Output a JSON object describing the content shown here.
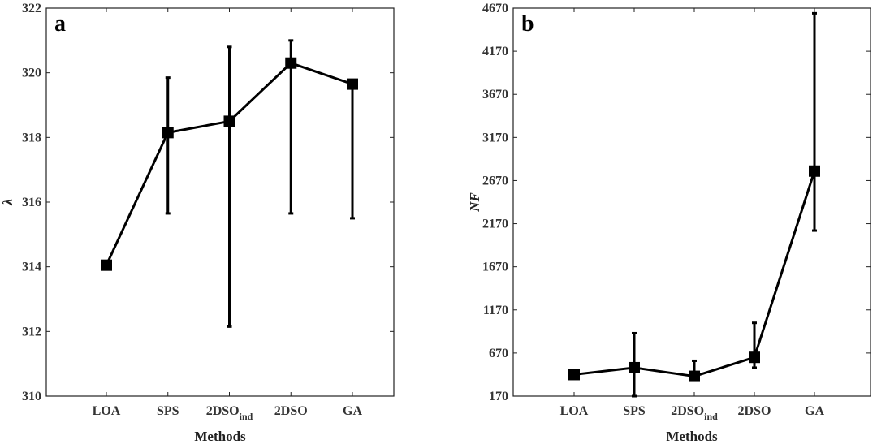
{
  "chart_data": [
    {
      "type": "line",
      "panel_label": "a",
      "title": "",
      "xlabel": "Methods",
      "ylabel": "λ",
      "categories": [
        {
          "main": "LOA",
          "sub": ""
        },
        {
          "main": "SPS",
          "sub": ""
        },
        {
          "main": "2DSO",
          "sub": "ind"
        },
        {
          "main": "2DSO",
          "sub": ""
        },
        {
          "main": "GA",
          "sub": ""
        }
      ],
      "values": [
        314.05,
        318.15,
        318.5,
        320.3,
        319.65
      ],
      "error_low": [
        null,
        315.65,
        312.15,
        315.65,
        315.5
      ],
      "error_high": [
        null,
        319.85,
        320.8,
        321.0,
        319.75
      ],
      "ylim": [
        310,
        322
      ],
      "yticks": [
        310,
        312,
        314,
        316,
        318,
        320,
        322
      ],
      "grid": false
    },
    {
      "type": "line",
      "panel_label": "b",
      "title": "",
      "xlabel": "Methods",
      "ylabel": "NF",
      "categories": [
        {
          "main": "LOA",
          "sub": ""
        },
        {
          "main": "SPS",
          "sub": ""
        },
        {
          "main": "2DSO",
          "sub": "ind"
        },
        {
          "main": "2DSO",
          "sub": ""
        },
        {
          "main": "GA",
          "sub": ""
        }
      ],
      "values": [
        420,
        500,
        400,
        620,
        2780
      ],
      "error_low": [
        null,
        170,
        380,
        500,
        2090
      ],
      "error_high": [
        null,
        900,
        580,
        1020,
        4610
      ],
      "ylim": [
        170,
        4670
      ],
      "yticks": [
        170,
        670,
        1170,
        1670,
        2170,
        2670,
        3170,
        3670,
        4170,
        4670
      ],
      "grid": false
    }
  ]
}
